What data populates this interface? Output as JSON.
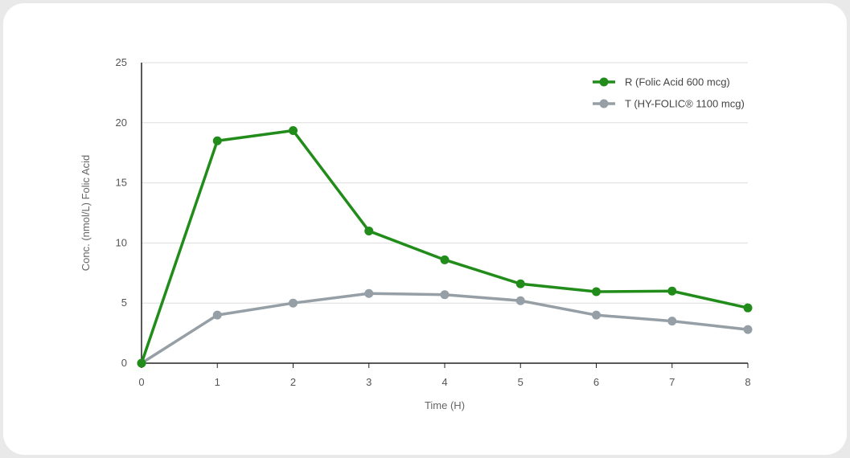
{
  "chart_data": {
    "type": "line",
    "x": [
      0,
      1,
      2,
      3,
      4,
      5,
      6,
      7,
      8
    ],
    "series": [
      {
        "name": "R (Folic Acid 600 mcg)",
        "color": "#218c1a",
        "values": [
          0,
          18.5,
          19.35,
          11.0,
          8.6,
          6.6,
          5.95,
          6.0,
          4.6
        ]
      },
      {
        "name": "T (HY-FOLIC® 1100 mcg)",
        "color": "#959fa5",
        "values": [
          0,
          4.0,
          5.0,
          5.8,
          5.7,
          5.2,
          4.0,
          3.5,
          2.8
        ]
      }
    ],
    "xlabel": "Time (H)",
    "ylabel": "Conc. (nmol/L) Folic Acid",
    "xlim": [
      0,
      8
    ],
    "ylim": [
      0,
      25
    ],
    "xticks": [
      "0",
      "1",
      "2",
      "3",
      "4",
      "5",
      "6",
      "7",
      "8"
    ],
    "yticks": [
      "0",
      "5",
      "10",
      "15",
      "20",
      "25"
    ],
    "grid": "horizontal",
    "legend_position": "top-right"
  }
}
